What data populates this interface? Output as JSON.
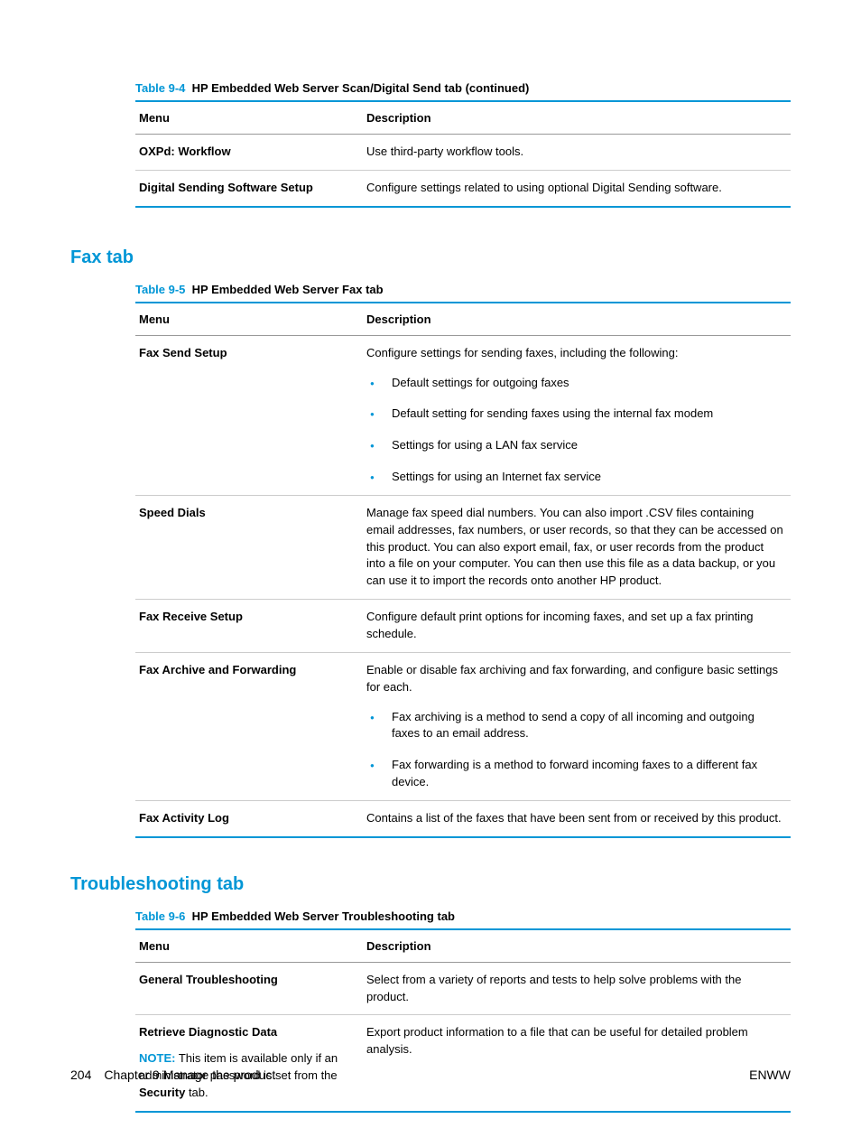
{
  "table94": {
    "caption_number": "Table 9-4",
    "caption_title": "HP Embedded Web Server Scan/Digital Send tab (continued)",
    "header_menu": "Menu",
    "header_desc": "Description",
    "rows": [
      {
        "menu": "OXPd: Workflow",
        "desc": "Use third-party workflow tools."
      },
      {
        "menu": "Digital Sending Software Setup",
        "desc": "Configure settings related to using optional Digital Sending software."
      }
    ]
  },
  "section_fax": {
    "heading": "Fax tab"
  },
  "table95": {
    "caption_number": "Table 9-5",
    "caption_title": "HP Embedded Web Server Fax tab",
    "header_menu": "Menu",
    "header_desc": "Description",
    "rows": {
      "fax_send": {
        "menu": "Fax Send Setup",
        "intro": "Configure settings for sending faxes, including the following:",
        "bullets": [
          "Default settings for outgoing faxes",
          "Default setting for sending faxes using the internal fax modem",
          "Settings for using a LAN fax service",
          "Settings for using an Internet fax service"
        ]
      },
      "speed_dials": {
        "menu": "Speed Dials",
        "desc": "Manage fax speed dial numbers. You can also import .CSV files containing email addresses, fax numbers, or user records, so that they can be accessed on this product. You can also export email, fax, or user records from the product into a file on your computer. You can then use this file as a data backup, or you can use it to import the records onto another HP product."
      },
      "fax_receive": {
        "menu": "Fax Receive Setup",
        "desc": "Configure default print options for incoming faxes, and set up a fax printing schedule."
      },
      "fax_archive": {
        "menu": "Fax Archive and Forwarding",
        "intro": "Enable or disable fax archiving and fax forwarding, and configure basic settings for each.",
        "bullets": [
          "Fax archiving is a method to send a copy of all incoming and outgoing faxes to an email address.",
          "Fax forwarding is a method to forward incoming faxes to a different fax device."
        ]
      },
      "fax_activity": {
        "menu": "Fax Activity Log",
        "desc": "Contains a list of the faxes that have been sent from or received by this product."
      }
    }
  },
  "section_troubleshooting": {
    "heading": "Troubleshooting tab"
  },
  "table96": {
    "caption_number": "Table 9-6",
    "caption_title": "HP Embedded Web Server Troubleshooting tab",
    "header_menu": "Menu",
    "header_desc": "Description",
    "rows": {
      "general": {
        "menu": "General Troubleshooting",
        "desc": "Select from a variety of reports and tests to help solve problems with the product."
      },
      "retrieve": {
        "menu": "Retrieve Diagnostic Data",
        "desc": "Export product information to a file that can be useful for detailed problem analysis.",
        "note_label": "NOTE:",
        "note_text1": "This item is available only if an administrator password is set from the",
        "note_bold": "Security",
        "note_text2": "tab."
      }
    }
  },
  "footer": {
    "page_number": "204",
    "chapter": "Chapter 9   Manage the product",
    "right": "ENWW"
  }
}
